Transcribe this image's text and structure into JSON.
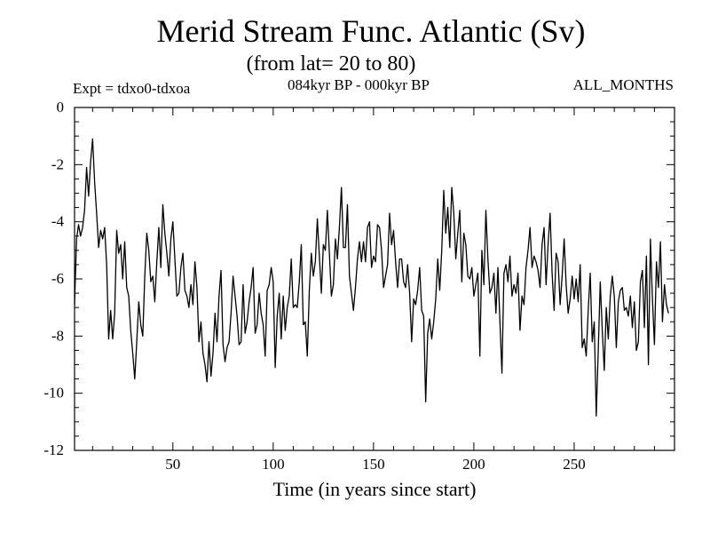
{
  "chart_data": {
    "type": "line",
    "title": "Merid Stream Func. Atlantic (Sv)",
    "subtitle": "(from lat= 20 to 80)",
    "annotations": {
      "left": "Expt = tdxo0-tdxoa",
      "center": "084kyr BP - 000kyr BP",
      "right": "ALL_MONTHS"
    },
    "xlabel": "Time (in years since start)",
    "ylabel": "",
    "xlim": [
      1,
      300
    ],
    "ylim": [
      -12,
      0
    ],
    "xticks": [
      50,
      100,
      150,
      200,
      250
    ],
    "yticks": [
      0,
      -2,
      -4,
      -6,
      -8,
      -10,
      -12
    ],
    "xtick_labels": [
      "50",
      "100",
      "150",
      "200",
      "250"
    ],
    "ytick_labels": [
      "0",
      "-2",
      "-4",
      "-6",
      "-8",
      "-10",
      "-12"
    ],
    "grid": false,
    "line_color": "#000000",
    "series": [
      {
        "x_start": 1,
        "x_step": 1,
        "values": [
          -6.9,
          -4.6,
          -4.1,
          -4.5,
          -4.2,
          -3.6,
          -2.1,
          -3.1,
          -1.9,
          -1.1,
          -2.6,
          -3.7,
          -4.9,
          -4.3,
          -4.6,
          -4.2,
          -5.5,
          -8.1,
          -7.1,
          -8.1,
          -7.2,
          -4.3,
          -5.1,
          -4.8,
          -6.0,
          -4.7,
          -6.3,
          -6.6,
          -7.8,
          -8.6,
          -9.5,
          -8.2,
          -6.8,
          -7.6,
          -8.0,
          -5.9,
          -4.4,
          -5.0,
          -6.1,
          -5.9,
          -6.8,
          -5.4,
          -4.2,
          -5.6,
          -3.4,
          -4.4,
          -5.1,
          -5.9,
          -4.6,
          -4.0,
          -5.3,
          -6.6,
          -6.5,
          -5.6,
          -5.1,
          -6.4,
          -6.6,
          -7.0,
          -6.2,
          -6.9,
          -5.4,
          -6.3,
          -8.2,
          -7.5,
          -8.6,
          -9.0,
          -9.6,
          -8.2,
          -9.4,
          -8.6,
          -7.2,
          -8.2,
          -6.6,
          -5.7,
          -8.3,
          -8.9,
          -8.4,
          -8.2,
          -7.2,
          -5.9,
          -6.6,
          -7.3,
          -8.3,
          -8.2,
          -6.2,
          -7.9,
          -7.5,
          -6.8,
          -6.3,
          -5.6,
          -7.9,
          -7.6,
          -6.5,
          -7.2,
          -7.6,
          -8.7,
          -6.4,
          -6.2,
          -5.6,
          -6.1,
          -9.1,
          -7.3,
          -6.5,
          -8.1,
          -6.6,
          -7.8,
          -7.0,
          -6.6,
          -5.3,
          -7.0,
          -6.9,
          -7.0,
          -6.1,
          -4.8,
          -7.6,
          -7.5,
          -8.7,
          -6.4,
          -5.1,
          -5.9,
          -5.4,
          -3.9,
          -5.2,
          -6.5,
          -4.8,
          -5.0,
          -3.6,
          -5.1,
          -6.6,
          -6.2,
          -4.6,
          -5.3,
          -4.2,
          -2.8,
          -4.9,
          -4.9,
          -3.4,
          -5.9,
          -6.5,
          -7.1,
          -6.3,
          -5.3,
          -4.7,
          -5.4,
          -4.7,
          -5.4,
          -4.2,
          -4.0,
          -5.6,
          -5.2,
          -5.4,
          -4.1,
          -4.2,
          -5.0,
          -6.3,
          -5.9,
          -5.5,
          -3.7,
          -4.8,
          -4.3,
          -5.4,
          -6.3,
          -5.3,
          -5.3,
          -6.1,
          -6.3,
          -5.5,
          -6.5,
          -8.2,
          -6.7,
          -6.9,
          -6.4,
          -5.6,
          -7.1,
          -7.3,
          -10.3,
          -7.9,
          -7.4,
          -8.1,
          -7.5,
          -6.7,
          -5.3,
          -6.4,
          -5.0,
          -2.9,
          -4.4,
          -3.5,
          -4.9,
          -2.8,
          -3.7,
          -5.3,
          -4.4,
          -3.6,
          -6.1,
          -4.4,
          -4.8,
          -5.9,
          -6.0,
          -5.6,
          -6.6,
          -6.2,
          -5.8,
          -8.7,
          -5.0,
          -6.2,
          -3.6,
          -5.3,
          -6.5,
          -6.3,
          -5.8,
          -7.2,
          -5.6,
          -7.5,
          -9.3,
          -5.8,
          -5.5,
          -6.1,
          -5.2,
          -6.6,
          -6.2,
          -6.5,
          -5.8,
          -7.8,
          -6.6,
          -6.9,
          -5.6,
          -5.0,
          -4.2,
          -5.6,
          -5.2,
          -5.4,
          -5.7,
          -6.3,
          -4.8,
          -4.2,
          -6.2,
          -4.8,
          -3.7,
          -5.8,
          -7.1,
          -5.1,
          -5.4,
          -6.9,
          -5.9,
          -4.6,
          -6.2,
          -7.2,
          -6.7,
          -5.9,
          -6.7,
          -6.0,
          -6.8,
          -5.5,
          -8.4,
          -8.1,
          -8.7,
          -7.1,
          -5.8,
          -8.2,
          -7.5,
          -10.8,
          -8.5,
          -6.1,
          -7.8,
          -9.2,
          -7.0,
          -8.1,
          -6.6,
          -5.9,
          -6.6,
          -8.4,
          -6.8,
          -6.4,
          -6.3,
          -7.1,
          -7.0,
          -7.3,
          -6.6,
          -7.7,
          -6.8,
          -8.5,
          -8.2,
          -6.1,
          -5.7,
          -7.7,
          -5.2,
          -9.0,
          -4.6,
          -6.7,
          -8.3,
          -5.4,
          -6.3,
          -4.7,
          -7.5,
          -6.2,
          -6.9,
          -7.2
        ]
      }
    ]
  }
}
